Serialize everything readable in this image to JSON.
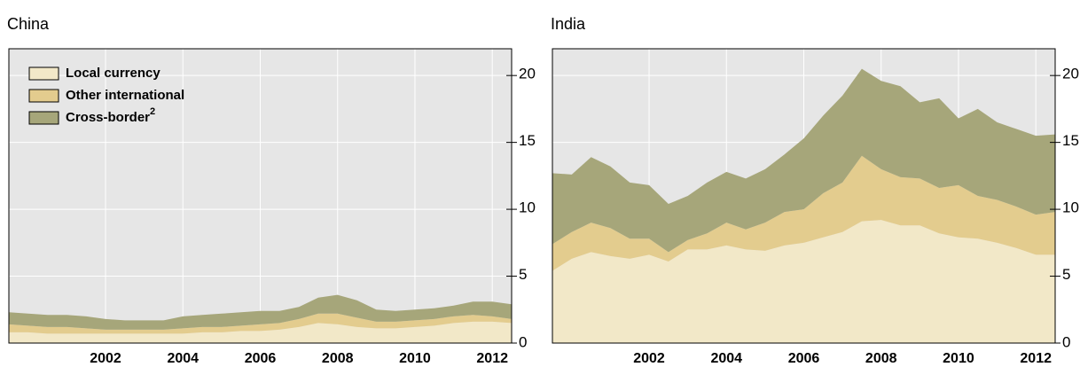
{
  "chart_data": [
    {
      "type": "stacked-area",
      "title": "China",
      "x": [
        1999.5,
        2000,
        2000.5,
        2001,
        2001.5,
        2002,
        2002.5,
        2003,
        2003.5,
        2004,
        2004.5,
        2005,
        2005.5,
        2006,
        2006.5,
        2007,
        2007.5,
        2008,
        2008.5,
        2009,
        2009.5,
        2010,
        2010.5,
        2011,
        2011.5,
        2012,
        2012.5
      ],
      "series": [
        {
          "name": "Local currency",
          "color": "#f2e8c8",
          "values": [
            0.8,
            0.8,
            0.7,
            0.7,
            0.7,
            0.7,
            0.7,
            0.7,
            0.7,
            0.7,
            0.8,
            0.8,
            0.9,
            0.9,
            1.0,
            1.2,
            1.5,
            1.4,
            1.2,
            1.1,
            1.1,
            1.2,
            1.3,
            1.5,
            1.6,
            1.6,
            1.5
          ]
        },
        {
          "name": "Other international",
          "color": "#e3cc8e",
          "values": [
            0.6,
            0.5,
            0.5,
            0.5,
            0.4,
            0.3,
            0.3,
            0.3,
            0.3,
            0.4,
            0.4,
            0.4,
            0.4,
            0.5,
            0.5,
            0.6,
            0.7,
            0.8,
            0.7,
            0.5,
            0.5,
            0.5,
            0.5,
            0.5,
            0.5,
            0.4,
            0.3
          ]
        },
        {
          "name": "Cross-border",
          "footnote": "2",
          "color": "#a6a67a",
          "values": [
            0.9,
            0.9,
            0.9,
            0.9,
            0.9,
            0.8,
            0.7,
            0.7,
            0.7,
            0.9,
            0.9,
            1.0,
            1.0,
            1.0,
            0.9,
            0.9,
            1.2,
            1.4,
            1.3,
            0.9,
            0.8,
            0.8,
            0.8,
            0.8,
            1.0,
            1.1,
            1.1
          ]
        }
      ],
      "xlim": [
        1999.5,
        2012.5
      ],
      "xticks": [
        2002,
        2004,
        2006,
        2008,
        2010,
        2012
      ],
      "ylim": [
        0,
        22
      ],
      "yticks": [
        0,
        5,
        10,
        15,
        20
      ],
      "grid": true,
      "legend": "upper left"
    },
    {
      "type": "stacked-area",
      "title": "India",
      "x": [
        1999.5,
        2000,
        2000.5,
        2001,
        2001.5,
        2002,
        2002.5,
        2003,
        2003.5,
        2004,
        2004.5,
        2005,
        2005.5,
        2006,
        2006.5,
        2007,
        2007.5,
        2008,
        2008.5,
        2009,
        2009.5,
        2010,
        2010.5,
        2011,
        2011.5,
        2012,
        2012.5
      ],
      "series": [
        {
          "color": "#f2e8c8",
          "values": [
            5.4,
            6.3,
            6.8,
            6.5,
            6.3,
            6.6,
            6.1,
            7.0,
            7.0,
            7.3,
            7.0,
            6.9,
            7.3,
            7.5,
            7.9,
            8.3,
            9.1,
            9.2,
            8.8,
            8.8,
            8.2,
            7.9,
            7.8,
            7.5,
            7.1,
            6.6,
            6.6
          ]
        },
        {
          "color": "#e3cc8e",
          "values": [
            2.0,
            2.0,
            2.2,
            2.1,
            1.5,
            1.2,
            0.7,
            0.7,
            1.2,
            1.7,
            1.5,
            2.1,
            2.5,
            2.5,
            3.3,
            3.7,
            4.9,
            3.8,
            3.6,
            3.5,
            3.4,
            3.9,
            3.2,
            3.2,
            3.1,
            3.0,
            3.2
          ]
        },
        {
          "color": "#a6a67a",
          "values": [
            5.3,
            4.3,
            4.9,
            4.6,
            4.2,
            4.0,
            3.6,
            3.3,
            3.8,
            3.8,
            3.8,
            4.0,
            4.3,
            5.3,
            5.8,
            6.5,
            6.5,
            6.6,
            6.8,
            5.7,
            6.7,
            5.0,
            6.5,
            5.8,
            5.8,
            5.9,
            5.8
          ]
        }
      ],
      "xlim": [
        1999.5,
        2012.5
      ],
      "xticks": [
        2002,
        2004,
        2006,
        2008,
        2010,
        2012
      ],
      "ylim": [
        0,
        22
      ],
      "yticks": [
        0,
        5,
        10,
        15,
        20
      ],
      "grid": true
    }
  ]
}
